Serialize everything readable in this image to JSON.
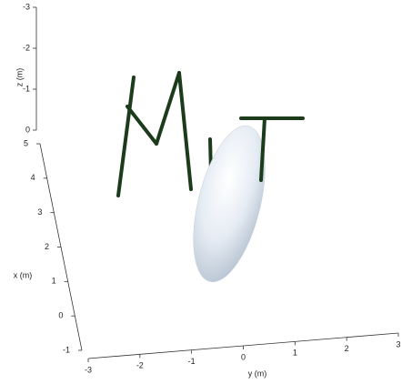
{
  "chart_data": {
    "type": "3d",
    "xlabel": "x (m)",
    "ylabel": "y (m)",
    "zlabel": "z (m)",
    "xlim": [
      -1,
      5
    ],
    "xticks": [
      -1,
      0,
      1,
      2,
      3,
      4,
      5
    ],
    "ylim": [
      -3,
      3
    ],
    "yticks": [
      -3,
      -2,
      -1,
      0,
      1,
      2,
      3
    ],
    "zlim": [
      -3,
      0
    ],
    "zticks": [
      -3,
      -2,
      -1,
      0
    ]
  }
}
